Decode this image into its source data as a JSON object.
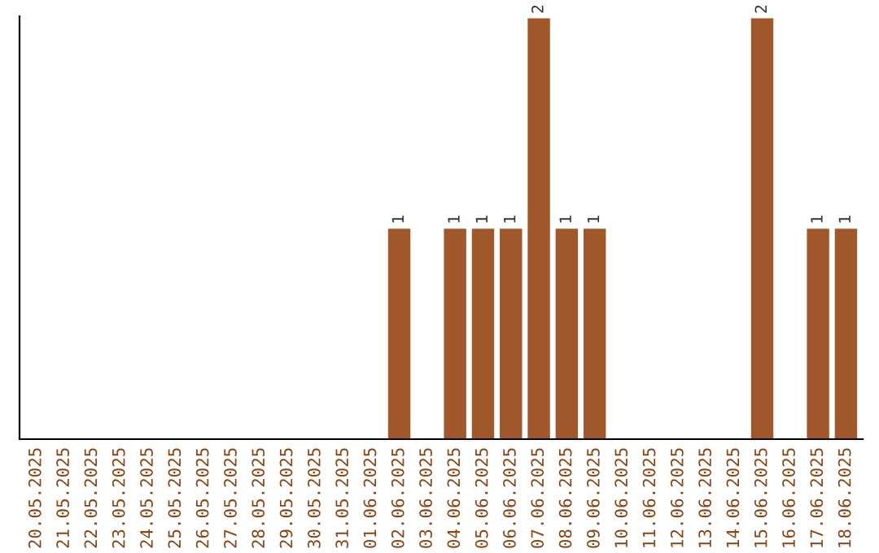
{
  "chart_data": {
    "type": "bar",
    "categories": [
      "20.05.2025",
      "21.05.2025",
      "22.05.2025",
      "23.05.2025",
      "24.05.2025",
      "25.05.2025",
      "26.05.2025",
      "27.05.2025",
      "28.05.2025",
      "29.05.2025",
      "30.05.2025",
      "31.05.2025",
      "01.06.2025",
      "02.06.2025",
      "03.06.2025",
      "04.06.2025",
      "05.06.2025",
      "06.06.2025",
      "07.06.2025",
      "08.06.2025",
      "09.06.2025",
      "10.06.2025",
      "11.06.2025",
      "12.06.2025",
      "13.06.2025",
      "14.06.2025",
      "15.06.2025",
      "16.06.2025",
      "17.06.2025",
      "18.06.2025"
    ],
    "values": [
      null,
      null,
      null,
      null,
      null,
      null,
      null,
      null,
      null,
      null,
      null,
      null,
      null,
      1,
      null,
      1,
      1,
      1,
      2,
      1,
      1,
      null,
      null,
      null,
      null,
      null,
      2,
      null,
      1,
      1
    ],
    "data_labels": true,
    "color": "#a0582a",
    "tick_labels": "x",
    "grid": false,
    "legend": false
  }
}
